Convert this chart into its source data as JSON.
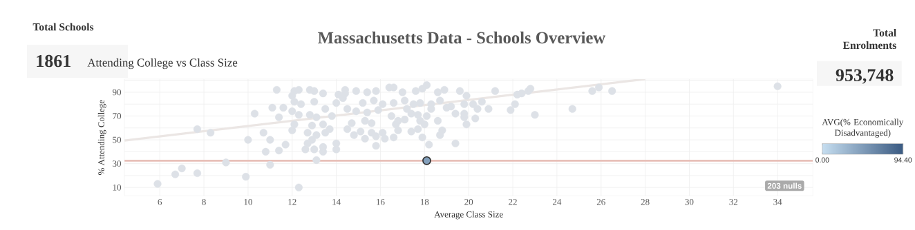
{
  "chart_data": {
    "type": "scatter",
    "title": "Massachusetts Data - Schools Overview",
    "subtitle": "Attending College vs Class Size",
    "xlabel": "Average Class Size",
    "ylabel": "% Attending College",
    "clabel": "AVG(% Economically Disadvantaged)",
    "xlim": [
      4.4,
      35.6
    ],
    "ylim": [
      3,
      101
    ],
    "xticks": [
      6,
      8,
      10,
      12,
      14,
      16,
      18,
      20,
      22,
      24,
      26,
      28,
      30,
      32,
      34
    ],
    "yticks": [
      10,
      {
        "value": 20,
        "label": null
      },
      30,
      {
        "value": 40,
        "label": null
      },
      50,
      {
        "value": 60,
        "label": null
      },
      70,
      {
        "value": 80,
        "label": null
      },
      90,
      {
        "value": 100,
        "label": null
      }
    ],
    "clim": [
      0,
      94.4
    ],
    "cticks": [
      {
        "value": 0,
        "label": "0.00"
      },
      {
        "value": 94.4,
        "label": "94.40"
      }
    ],
    "grid": true,
    "marker": "circle",
    "series": [
      {
        "type": "line",
        "marker": "none",
        "color": "#ebe6e4",
        "x": [
          4.4,
          28.0
        ],
        "values": [
          49.4,
          101
        ]
      },
      {
        "color": "#dde1e7",
        "x": [
          5.9,
          6.7,
          7.0,
          7.7,
          7.7,
          8.3,
          9.0,
          9.9,
          10.0,
          10.3,
          10.7,
          10.8,
          11.0,
          11.0,
          11.3,
          11.1,
          11.4,
          11.4,
          11.7,
          11.6,
          12.0,
          12.3,
          12.1,
          12.3,
          12.0,
          12.1,
          12.0,
          12.3,
          12.1,
          12.7,
          12.7,
          12.9,
          13.1,
          13.1,
          12.6,
          13.0,
          13.4,
          13.4,
          13.5,
          13.4,
          13.7,
          14.0,
          14.0,
          12.9,
          12.8,
          13.0,
          13.0,
          13.4,
          13.5,
          13.8,
          14.1,
          14.5,
          14.4,
          12.8,
          13.1,
          12.4,
          14.0,
          14.3,
          14.8,
          15.3,
          15.8,
          15.1,
          15.6,
          15.8,
          16.2,
          16.1,
          16.6,
          16.8,
          17.4,
          17.7,
          17.9,
          18.2,
          18.7,
          18.8,
          19.4,
          18.0,
          17.8,
          18.6,
          18.1,
          19.4,
          19.9,
          20.3,
          19.8,
          19.8,
          20.4,
          20.6,
          20.9,
          21.2,
          21.9,
          22.1,
          22.2,
          22.4,
          22.7,
          22.8,
          23.0,
          19.0,
          19.2,
          18.7,
          18.9,
          18.6,
          19.6,
          19.9,
          20.2,
          19.8,
          18.1,
          18.3,
          17.7,
          17.4,
          17.1,
          16.8,
          16.5,
          16.7,
          15.6,
          15.3,
          14.7,
          14.5,
          14.4,
          14.9,
          15.4,
          15.8,
          16.4,
          16.6,
          17.0,
          17.6,
          17.9,
          15.2,
          15.7,
          16.1,
          16.6,
          17.1,
          17.5,
          17.8,
          14.9,
          15.4,
          15.9,
          17.2,
          18.3,
          24.7,
          25.6,
          25.9,
          26.5,
          34.0
        ],
        "values": [
          13,
          21,
          26,
          22,
          59,
          56,
          31,
          19,
          50,
          72,
          56,
          40,
          50,
          29,
          92,
          77,
          69,
          41,
          46,
          77,
          58,
          10,
          91,
          92,
          87,
          82,
          74,
          71,
          63,
          56,
          47,
          50,
          54,
          33,
          42,
          42,
          40,
          44,
          56,
          63,
          59,
          42,
          47,
          62,
          92,
          91,
          82,
          89,
          76,
          70,
          88,
          59,
          92,
          71,
          69,
          80,
          81,
          85,
          54,
          51,
          45,
          57,
          56,
          53,
          51,
          56,
          52,
          58,
          57,
          59,
          52,
          46,
          54,
          58,
          47,
          63,
          66,
          66,
          70,
          72,
          63,
          68,
          69,
          72,
          76,
          82,
          76,
          91,
          75,
          80,
          88,
          89,
          91,
          93,
          71,
          77,
          78,
          83,
          92,
          90,
          91,
          87,
          80,
          80,
          96,
          80,
          71,
          72,
          67,
          66,
          70,
          63,
          64,
          66,
          64,
          76,
          89,
          91,
          90,
          91,
          94,
          94,
          90,
          91,
          93,
          81,
          83,
          80,
          81,
          83,
          80,
          81,
          74,
          73,
          75,
          76,
          76,
          76,
          91,
          94,
          91,
          95
        ]
      },
      {
        "x": [
          18.1
        ],
        "values": [
          32.5
        ],
        "cvalues": [
          45
        ]
      }
    ],
    "ref_lines": [
      {
        "axis": "y",
        "value": 32.5,
        "color": "#e8bfb8"
      }
    ],
    "annotations": [
      "Total Schools",
      "1861",
      "Total Enrolments",
      "953,748",
      "203 nulls"
    ]
  }
}
